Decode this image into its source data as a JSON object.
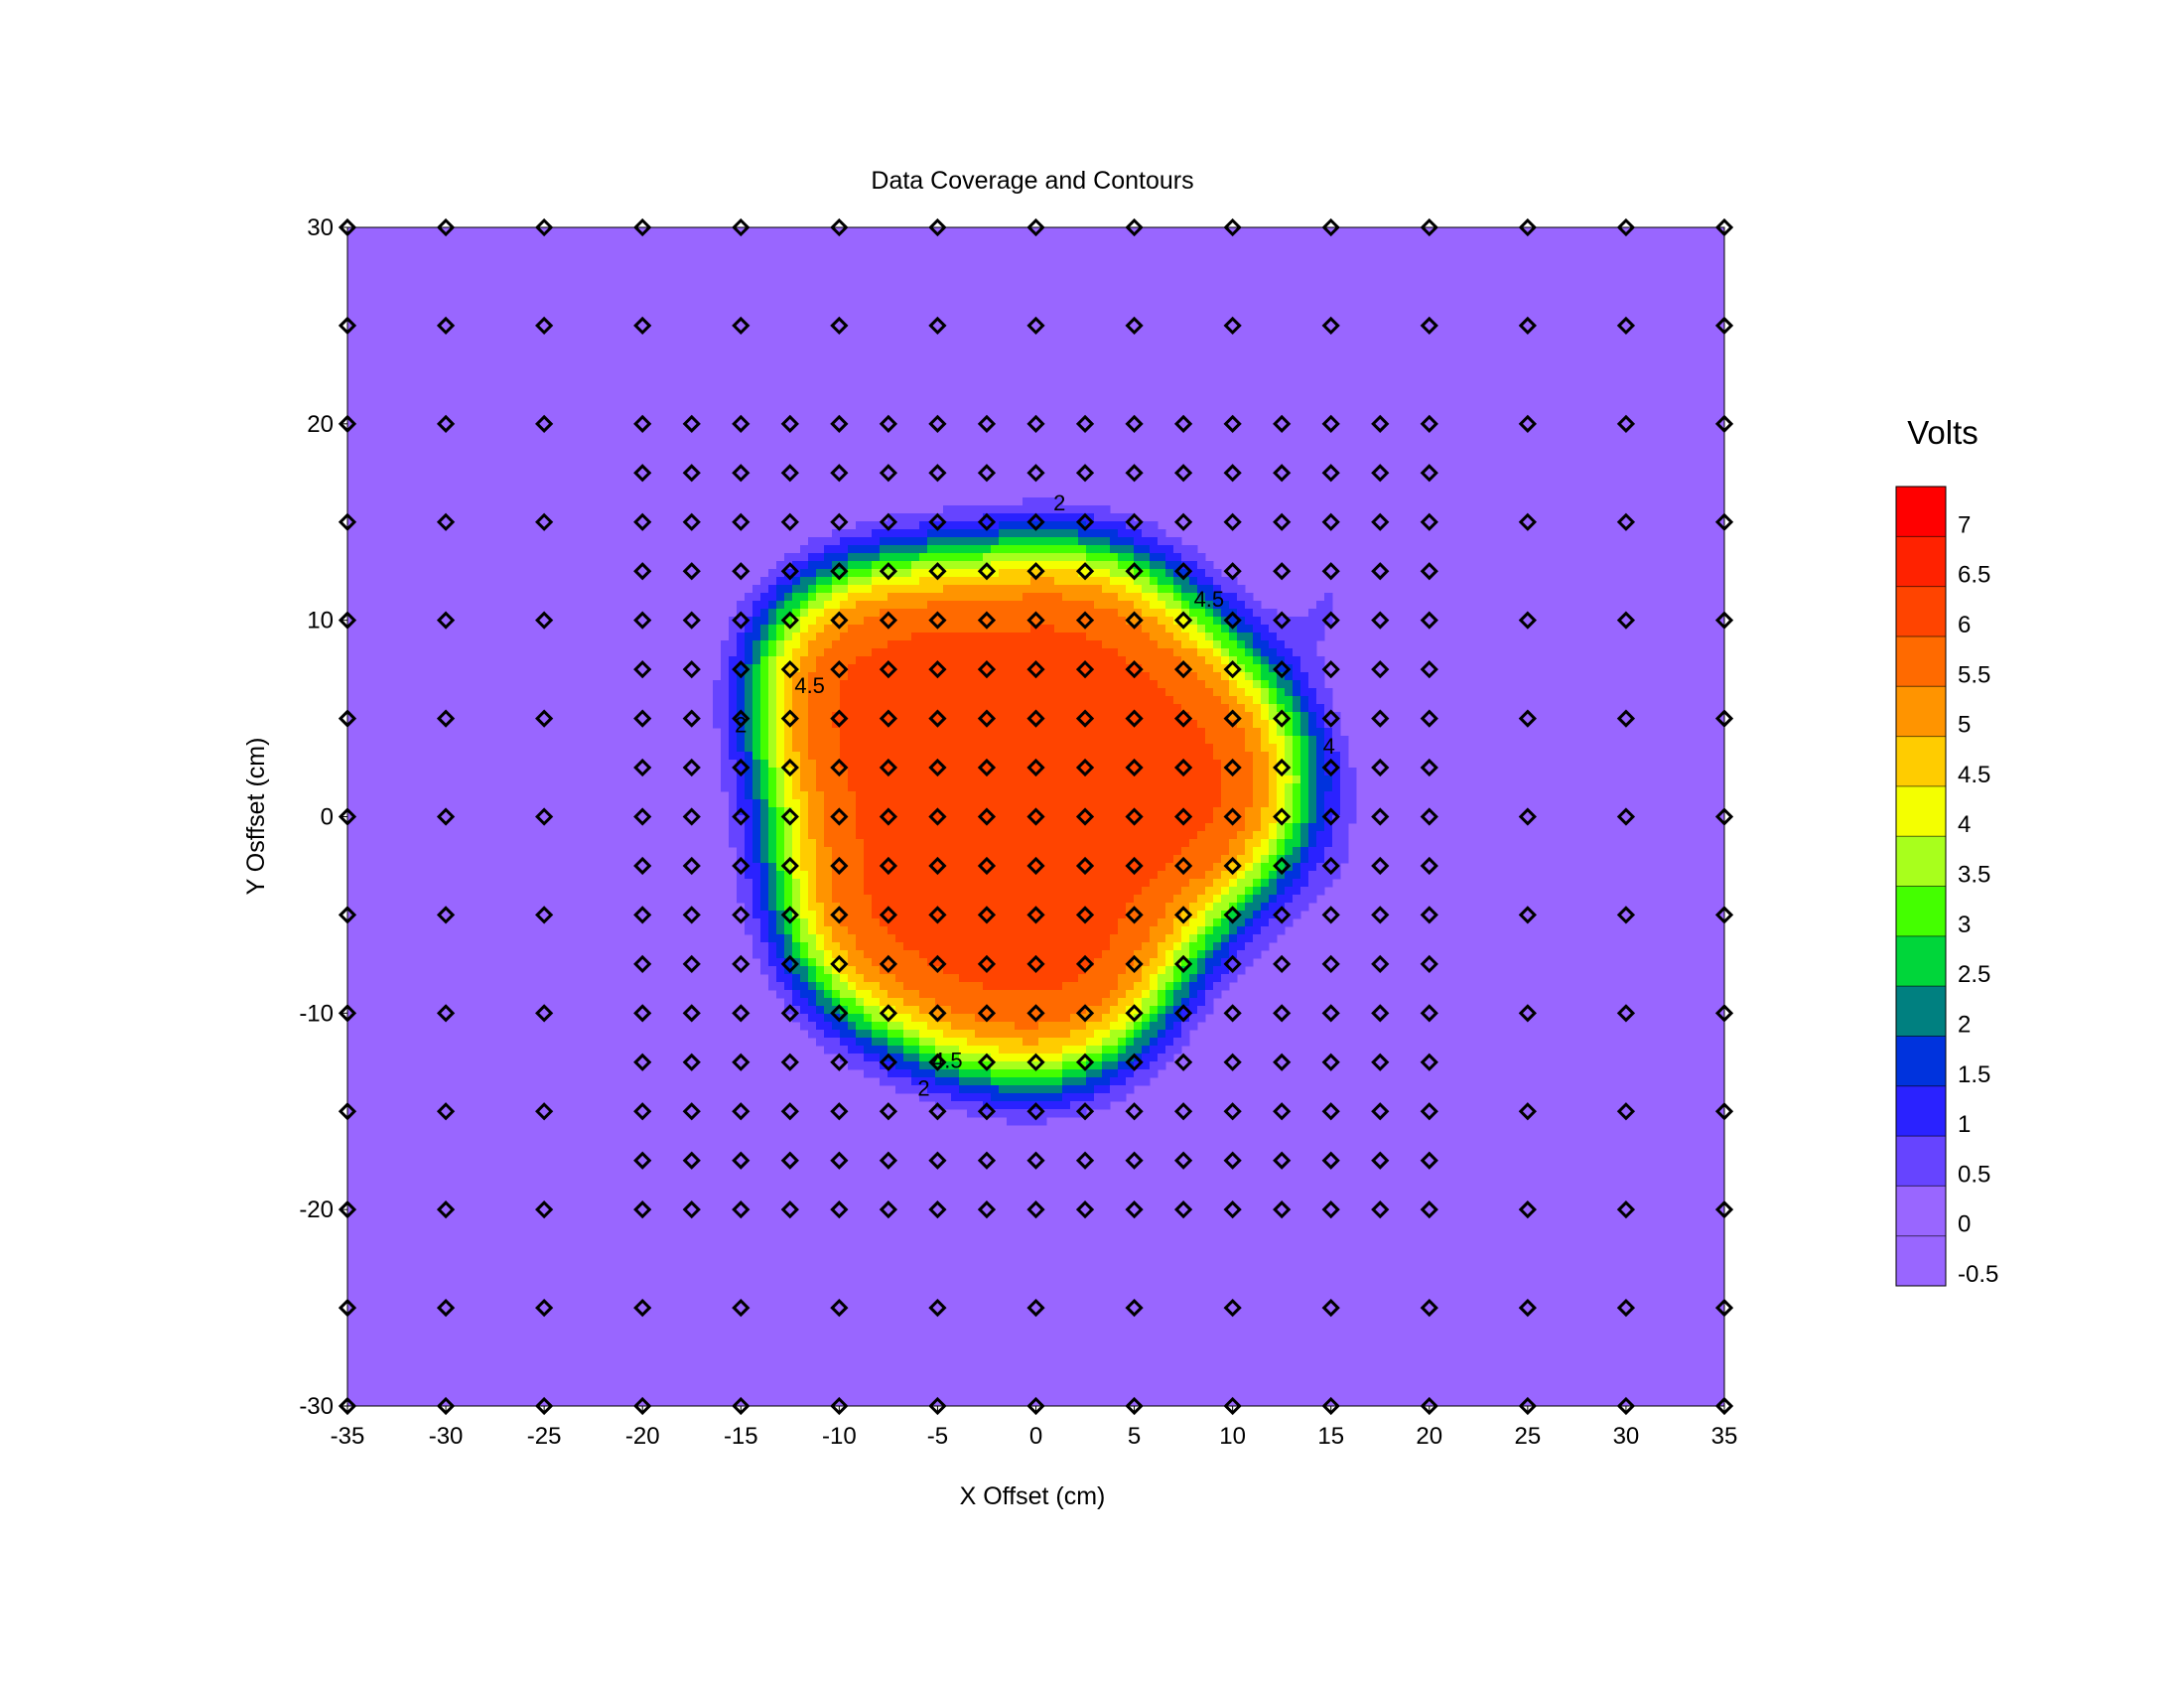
{
  "chart_data": {
    "type": "heatmap",
    "subtype": "filled-contour",
    "title": "Data Coverage and Contours",
    "xlabel": "X Offset (cm)",
    "ylabel": "Y Osffset (cm)",
    "xlim": [
      -35,
      35
    ],
    "ylim": [
      -30,
      30
    ],
    "x_ticks": [
      -35,
      -30,
      -25,
      -20,
      -15,
      -10,
      -5,
      0,
      5,
      10,
      15,
      20,
      25,
      30,
      35
    ],
    "y_ticks": [
      30,
      20,
      10,
      0,
      -10,
      -20,
      -30
    ],
    "legend": {
      "title": "Volts",
      "placement": "right",
      "levels": [
        7,
        6.5,
        6,
        5.5,
        5,
        4.5,
        4,
        3.5,
        3,
        2.5,
        2,
        1.5,
        1,
        0.5,
        0,
        -0.5
      ],
      "colors": [
        "#ff0000",
        "#ff2200",
        "#ff4400",
        "#ff6a00",
        "#ff9400",
        "#ffcc00",
        "#f4ff00",
        "#a8ff1c",
        "#44ff00",
        "#00d63a",
        "#008080",
        "#0033dd",
        "#2a22ff",
        "#6644ff",
        "#9966ff",
        "#9966ff"
      ]
    },
    "colorbar_labels": [
      "7",
      "6.5",
      "6",
      "5.5",
      "5",
      "4.5",
      "4",
      "3.5",
      "3",
      "2.5",
      "2",
      "1.5",
      "1",
      "0.5",
      "0",
      "-0.5"
    ],
    "background_color": "#9966ff",
    "contour_labels": [
      {
        "text": "2",
        "x": 1.2,
        "y": 15.6
      },
      {
        "text": "4.5",
        "x": 8.8,
        "y": 10.7
      },
      {
        "text": "4.5",
        "x": -11.5,
        "y": 6.3
      },
      {
        "text": "2",
        "x": -15.0,
        "y": 4.3
      },
      {
        "text": "4",
        "x": 14.9,
        "y": 3.2
      },
      {
        "text": "4.5",
        "x": -4.5,
        "y": -12.8
      },
      {
        "text": "2",
        "x": -5.7,
        "y": -14.2
      }
    ],
    "coverage": {
      "coarse_x": [
        -35,
        -30,
        -25,
        -20,
        -15,
        -10,
        -5,
        0,
        5,
        10,
        15,
        20,
        25,
        30,
        35
      ],
      "coarse_y": [
        30,
        25,
        -25,
        -30
      ],
      "outer_x": [
        -35,
        -30,
        -25,
        25,
        30,
        35
      ],
      "outer_y": [
        20,
        15,
        10,
        5,
        0,
        -5,
        -10,
        -15,
        -20
      ],
      "fine_x_range": [
        -20,
        20
      ],
      "fine_y_range": [
        -20,
        20
      ],
      "fine_step": 2.5,
      "fine_coarse_rows": [
        20,
        -20
      ],
      "fine_coarse_step": 2.5
    },
    "field": {
      "description": "circular plateau of ~6.2 V centered near (-1, 1) with radius ~13 cm, decaying to ~-0.5 V",
      "peak": 6.2,
      "floor": -0.5,
      "center": [
        -1,
        1
      ],
      "radius": 13.6,
      "lobe": {
        "x": 17,
        "y": -6,
        "amp": 0.7
      }
    }
  }
}
